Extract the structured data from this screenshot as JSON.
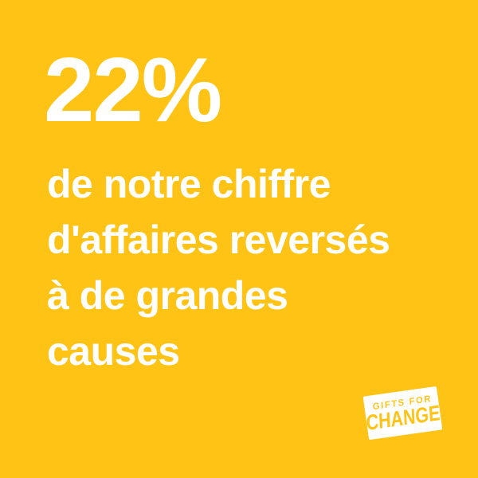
{
  "theme": {
    "bg": "#fec315",
    "fg": "#ffffff",
    "logo-bg": "#ffffff",
    "logo-fg": "#fec315"
  },
  "stat": {
    "value": "22%"
  },
  "caption": {
    "lines": [
      "de notre chiffre",
      "d'affaires reversés",
      "à de grandes",
      "causes"
    ]
  },
  "logo": {
    "line1": "GIFTS FOR",
    "line2": "CHANGE"
  }
}
